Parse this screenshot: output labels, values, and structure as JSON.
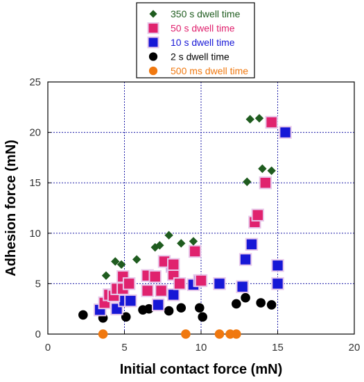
{
  "chart_data": {
    "type": "scatter",
    "xlabel": "Initial contact force (mN)",
    "ylabel": "Adhesion force (mN)",
    "xlim": [
      0,
      20
    ],
    "ylim": [
      0,
      25
    ],
    "xticks": [
      0,
      5,
      10,
      15,
      20
    ],
    "yticks": [
      0,
      5,
      10,
      15,
      20,
      25
    ],
    "grid": true,
    "legend_position": "top-center",
    "series": [
      {
        "name": "350 s dwell time",
        "color": "#1f5c1f",
        "marker": "diamond",
        "points": [
          [
            3.8,
            5.8
          ],
          [
            4.4,
            7.2
          ],
          [
            4.8,
            6.9
          ],
          [
            5.8,
            7.4
          ],
          [
            7.0,
            8.6
          ],
          [
            7.3,
            8.8
          ],
          [
            7.9,
            9.8
          ],
          [
            8.7,
            9.0
          ],
          [
            9.5,
            9.2
          ],
          [
            13.0,
            15.1
          ],
          [
            13.2,
            21.3
          ],
          [
            13.8,
            21.4
          ],
          [
            14.0,
            16.4
          ],
          [
            14.6,
            16.2
          ]
        ]
      },
      {
        "name": "50 s dwell time",
        "color": "#e0226e",
        "marker": "square",
        "points": [
          [
            3.7,
            3.1
          ],
          [
            4.0,
            3.9
          ],
          [
            4.3,
            3.8
          ],
          [
            4.5,
            4.5
          ],
          [
            4.9,
            4.5
          ],
          [
            4.9,
            5.7
          ],
          [
            5.3,
            5.0
          ],
          [
            6.5,
            4.3
          ],
          [
            6.5,
            5.8
          ],
          [
            7.0,
            5.7
          ],
          [
            7.4,
            4.3
          ],
          [
            7.6,
            7.2
          ],
          [
            8.2,
            5.9
          ],
          [
            8.2,
            6.9
          ],
          [
            8.6,
            5.0
          ],
          [
            9.6,
            8.2
          ],
          [
            10.0,
            5.3
          ],
          [
            13.5,
            11.1
          ],
          [
            13.7,
            11.8
          ],
          [
            14.2,
            15.0
          ],
          [
            14.6,
            21.0
          ]
        ]
      },
      {
        "name": "10 s dwell time",
        "color": "#1717d6",
        "marker": "square",
        "points": [
          [
            3.4,
            2.4
          ],
          [
            4.5,
            2.5
          ],
          [
            5.0,
            3.3
          ],
          [
            5.4,
            3.3
          ],
          [
            7.2,
            2.9
          ],
          [
            8.2,
            3.9
          ],
          [
            8.1,
            6.7
          ],
          [
            9.5,
            4.9
          ],
          [
            9.9,
            5.3
          ],
          [
            11.2,
            5.0
          ],
          [
            12.7,
            4.7
          ],
          [
            12.9,
            7.4
          ],
          [
            13.3,
            8.9
          ],
          [
            15.0,
            5.0
          ],
          [
            15.0,
            6.8
          ],
          [
            15.5,
            20.0
          ]
        ]
      },
      {
        "name": "2 s dwell time",
        "color": "#000000",
        "marker": "circle",
        "points": [
          [
            2.3,
            1.9
          ],
          [
            3.6,
            1.6
          ],
          [
            5.1,
            1.7
          ],
          [
            6.2,
            2.4
          ],
          [
            6.6,
            2.5
          ],
          [
            7.9,
            2.3
          ],
          [
            8.7,
            2.6
          ],
          [
            9.9,
            2.6
          ],
          [
            10.1,
            1.7
          ],
          [
            12.3,
            3.0
          ],
          [
            12.9,
            3.6
          ],
          [
            13.9,
            3.1
          ],
          [
            14.6,
            2.9
          ]
        ]
      },
      {
        "name": "500 ms dwell time",
        "color": "#f0780f",
        "marker": "circle",
        "points": [
          [
            3.6,
            0.0
          ],
          [
            9.0,
            0.0
          ],
          [
            11.2,
            0.0
          ],
          [
            11.9,
            0.0
          ],
          [
            12.3,
            0.0
          ]
        ]
      }
    ]
  }
}
